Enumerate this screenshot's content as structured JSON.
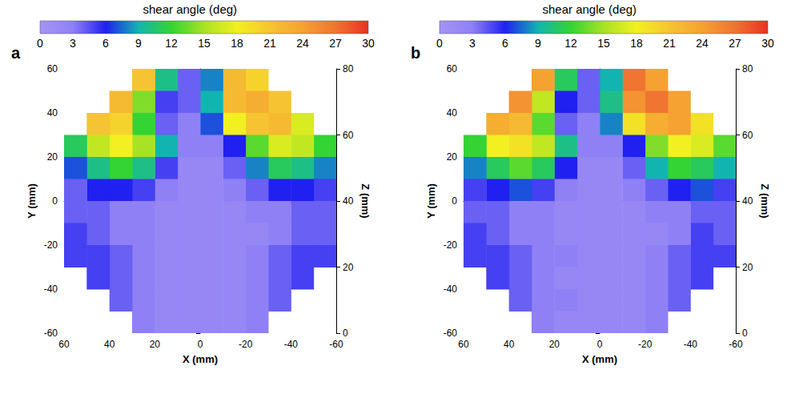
{
  "chart_data": [
    {
      "type": "heatmap",
      "panel": "a",
      "colorbar_title": "shear angle (deg)",
      "colorbar": {
        "range": [
          0,
          30
        ],
        "ticks": [
          0,
          3,
          6,
          9,
          12,
          15,
          18,
          21,
          24,
          27,
          30
        ],
        "colors": [
          "#a395f2",
          "#8f80f6",
          "#2020f0",
          "#12b4b0",
          "#33d433",
          "#a8e224",
          "#f2f020",
          "#f6c432",
          "#f5a232",
          "#f07432",
          "#e83222"
        ]
      },
      "x_label": "X (mm)",
      "y_label": "Y (mm)",
      "z_label": "Z (mm)",
      "xlim": [
        60,
        -60
      ],
      "xticks": [
        60,
        40,
        20,
        0,
        -20,
        -40,
        -60
      ],
      "ylim": [
        -60,
        60
      ],
      "yticks": [
        -60,
        -40,
        -20,
        0,
        20,
        40,
        60
      ],
      "zlim": [
        0,
        80
      ],
      "zticks": [
        0,
        20,
        40,
        60,
        80
      ],
      "x": [
        -55,
        -45,
        -35,
        -25,
        -15,
        -5,
        5,
        15,
        25,
        35,
        45,
        55
      ],
      "y": [
        55,
        45,
        35,
        25,
        15,
        5,
        -5,
        -15,
        -25,
        -35,
        -45,
        -55
      ],
      "values": [
        [
          null,
          null,
          null,
          20,
          22,
          8,
          4,
          10,
          21,
          null,
          null,
          null
        ],
        [
          null,
          null,
          21,
          23,
          22,
          9,
          4,
          5,
          14,
          22,
          null,
          null
        ],
        [
          null,
          17,
          22,
          21,
          18,
          7,
          3,
          4,
          12,
          20,
          21,
          null
        ],
        [
          12,
          16,
          17,
          13,
          6,
          3,
          3,
          9,
          15,
          18,
          16,
          11
        ],
        [
          8,
          10,
          11,
          8,
          4,
          2,
          2,
          5,
          10,
          12,
          10,
          7
        ],
        [
          5,
          6,
          6,
          4,
          3,
          2,
          2,
          3,
          5,
          6,
          6,
          4
        ],
        [
          4,
          4,
          3,
          3,
          2,
          2,
          2,
          2,
          3,
          3,
          4,
          4
        ],
        [
          4,
          4,
          3,
          2,
          2,
          2,
          2,
          2,
          3,
          3,
          4,
          5
        ],
        [
          5,
          5,
          4,
          3,
          2,
          2,
          2,
          2,
          3,
          4,
          5,
          5
        ],
        [
          null,
          5,
          4,
          3,
          2,
          2,
          2,
          2,
          3,
          4,
          5,
          null
        ],
        [
          null,
          null,
          4,
          3,
          2,
          2,
          2,
          2,
          3,
          4,
          null,
          null
        ],
        [
          null,
          null,
          null,
          3,
          2,
          2,
          2,
          2,
          3,
          null,
          null,
          null
        ]
      ]
    },
    {
      "type": "heatmap",
      "panel": "b",
      "colorbar_title": "shear angle (deg)",
      "colorbar": {
        "range": [
          0,
          30
        ],
        "ticks": [
          0,
          3,
          6,
          9,
          12,
          15,
          18,
          21,
          24,
          27,
          30
        ],
        "colors": [
          "#a395f2",
          "#8f80f6",
          "#2020f0",
          "#12b4b0",
          "#33d433",
          "#a8e224",
          "#f2f020",
          "#f6c432",
          "#f5a232",
          "#f07432",
          "#e83222"
        ]
      },
      "x_label": "X (mm)",
      "y_label": "Y (mm)",
      "z_label": "Z (mm)",
      "xlim": [
        60,
        -60
      ],
      "xticks": [
        60,
        40,
        20,
        0,
        -20,
        -40,
        -60
      ],
      "ylim": [
        -60,
        60
      ],
      "yticks": [
        -60,
        -40,
        -20,
        0,
        20,
        40,
        60
      ],
      "zlim": [
        0,
        80
      ],
      "zticks": [
        0,
        20,
        40,
        60,
        80
      ],
      "x": [
        -55,
        -45,
        -35,
        -25,
        -15,
        -5,
        5,
        15,
        25,
        35,
        45,
        55
      ],
      "y": [
        55,
        45,
        35,
        25,
        15,
        5,
        -5,
        -15,
        -25,
        -35,
        -45,
        -55
      ],
      "values": [
        [
          null,
          null,
          null,
          24,
          27,
          9,
          4,
          11,
          24,
          null,
          null,
          null
        ],
        [
          null,
          null,
          24,
          27,
          25,
          10,
          4,
          6,
          16,
          25,
          null,
          null
        ],
        [
          null,
          19,
          24,
          23,
          19,
          8,
          3,
          4,
          13,
          22,
          23,
          null
        ],
        [
          13,
          17,
          18,
          14,
          6,
          3,
          3,
          10,
          16,
          19,
          18,
          12
        ],
        [
          9,
          11,
          12,
          9,
          4,
          2,
          2,
          6,
          11,
          13,
          11,
          8
        ],
        [
          5,
          7,
          6,
          4,
          3,
          2,
          2,
          3,
          5,
          7,
          6,
          5
        ],
        [
          4,
          4,
          3,
          3,
          2,
          2,
          2,
          2,
          3,
          3,
          4,
          4
        ],
        [
          4,
          5,
          3,
          2,
          2,
          2,
          2,
          2,
          3,
          3,
          4,
          5
        ],
        [
          5,
          5,
          4,
          3,
          2,
          2,
          2,
          3,
          3,
          4,
          5,
          5
        ],
        [
          null,
          5,
          4,
          3,
          2,
          2,
          2,
          2,
          3,
          4,
          5,
          null
        ],
        [
          null,
          null,
          4,
          3,
          2,
          2,
          2,
          3,
          3,
          4,
          null,
          null
        ],
        [
          null,
          null,
          null,
          3,
          2,
          2,
          2,
          2,
          3,
          null,
          null,
          null
        ]
      ]
    }
  ]
}
